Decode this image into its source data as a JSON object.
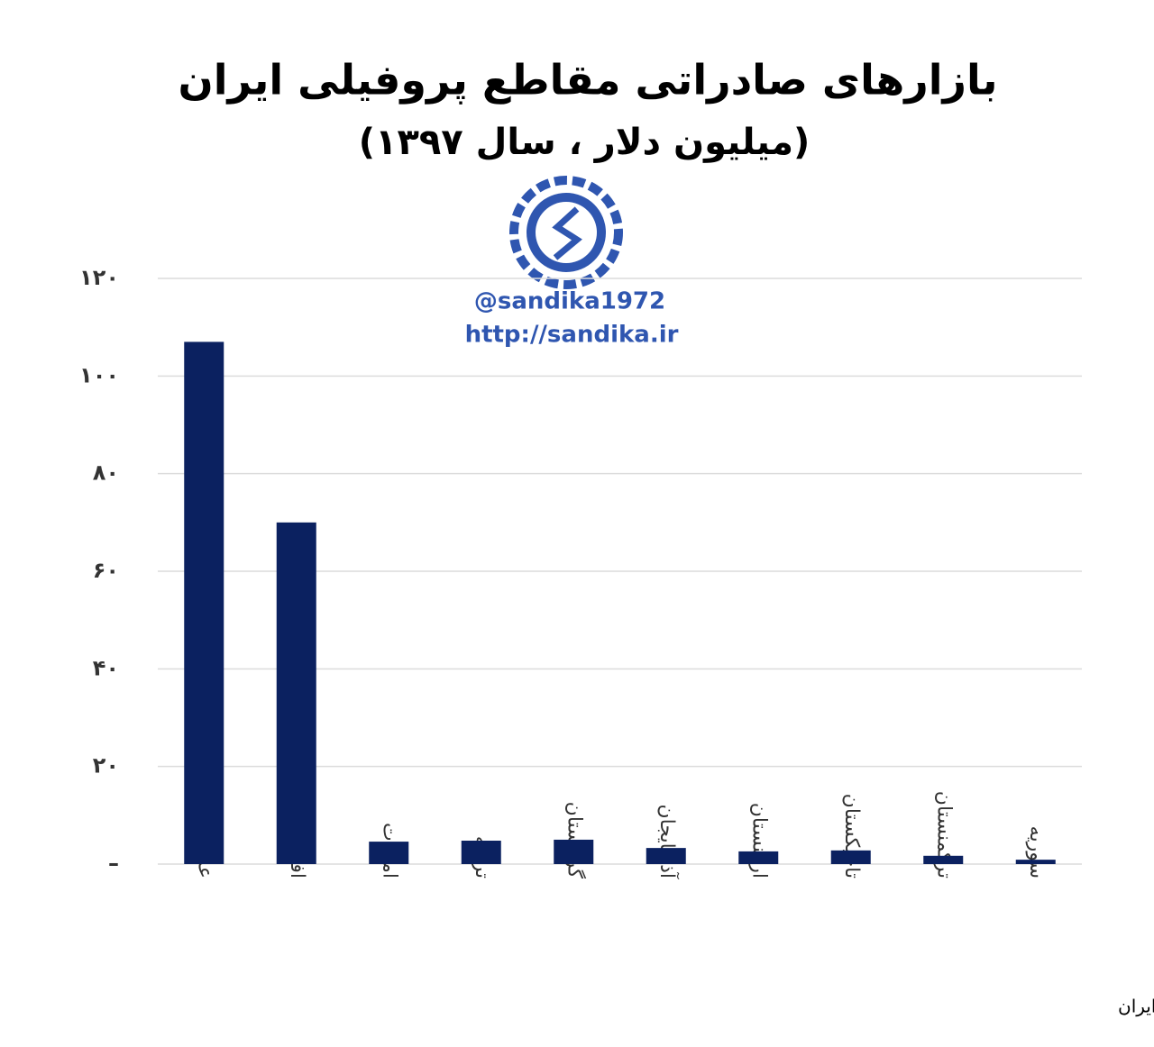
{
  "chart_data": {
    "type": "bar",
    "title": "بازارهای صادراتی مقاطع پروفیلی ایران",
    "subtitle": "(میلیون دلار ، سال ۱۳۹۷)",
    "watermark": [
      "@sandika1972",
      "http://sandika.ir"
    ],
    "source": "مرجع آمار: گمرک ایران",
    "categories": [
      "عراق",
      "افغانستان",
      "امارات",
      "ترکیه",
      "گرجستان",
      "آذربایجان",
      "ارمنستان",
      "تاجیکستان",
      "ترکمنستان",
      "سوریه"
    ],
    "values": [
      107,
      70,
      4.6,
      4.8,
      5.0,
      3.3,
      2.6,
      2.8,
      1.7,
      0.9
    ],
    "color": "#0b2160",
    "ylim": [
      0,
      120
    ],
    "yticks": [
      {
        "value": 0,
        "label": "–"
      },
      {
        "value": 20,
        "label": "۲۰"
      },
      {
        "value": 40,
        "label": "۴۰"
      },
      {
        "value": 60,
        "label": "۶۰"
      },
      {
        "value": 80,
        "label": "۸۰"
      },
      {
        "value": 100,
        "label": "۱۰۰"
      },
      {
        "value": 120,
        "label": "۱۲۰"
      }
    ],
    "grid": true
  }
}
